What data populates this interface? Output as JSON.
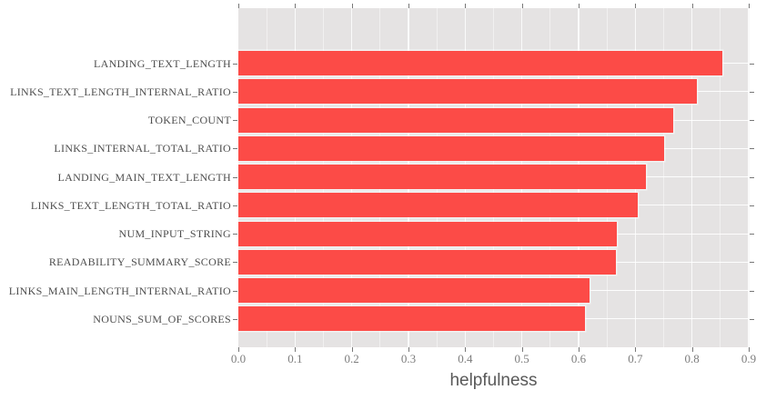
{
  "chart_data": {
    "type": "bar",
    "orientation": "horizontal",
    "title": "",
    "xlabel": "helpfulness",
    "ylabel": "",
    "xlim": [
      0.0,
      0.9
    ],
    "xticks": [
      "0.0",
      "0.1",
      "0.2",
      "0.3",
      "0.4",
      "0.5",
      "0.6",
      "0.7",
      "0.8",
      "0.9"
    ],
    "grid": "white major gridlines every 0.1 and faint minor every 0.05 on gray panel; white gridline at each category row",
    "legend": "none",
    "categories": [
      "LANDING_TEXT_LENGTH",
      "LINKS_TEXT_LENGTH_INTERNAL_RATIO",
      "TOKEN_COUNT",
      "LINKS_INTERNAL_TOTAL_RATIO",
      "LANDING_MAIN_TEXT_LENGTH",
      "LINKS_TEXT_LENGTH_TOTAL_RATIO",
      "NUM_INPUT_STRING",
      "READABILITY_SUMMARY_SCORE",
      "LINKS_MAIN_LENGTH_INTERNAL_RATIO",
      "NOUNS_SUM_OF_SCORES"
    ],
    "values": [
      0.853,
      0.808,
      0.767,
      0.75,
      0.718,
      0.704,
      0.667,
      0.666,
      0.62,
      0.611
    ],
    "colors": {
      "bar": "#fc4b47",
      "panel_background": "#e5e3e3",
      "figure_background": "#ffffff",
      "major_grid": "#fafafa",
      "tick_mark": "#777777",
      "x_tick_label": "#7d7d7d",
      "category_label": "#4d4d4d",
      "axis_title": "#595959"
    }
  }
}
